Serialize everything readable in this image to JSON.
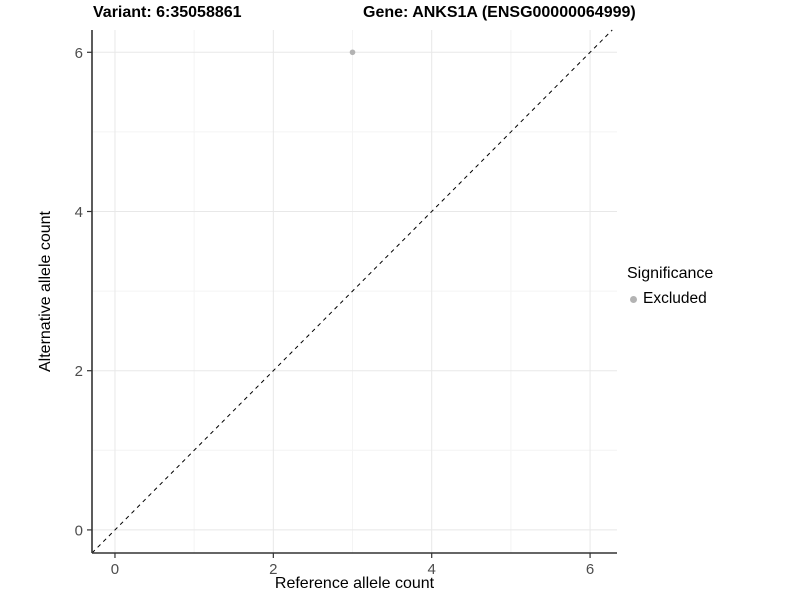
{
  "figure": {
    "title_left": "Variant: 6:35058861",
    "title_right": "Gene: ANKS1A (ENSG00000064999)"
  },
  "chart_data": {
    "type": "scatter",
    "title": "Variant: 6:35058861    Gene: ANKS1A (ENSG00000064999)",
    "xlabel": "Reference allele count",
    "ylabel": "Alternative allele count",
    "xlim": [
      -0.29,
      6.34
    ],
    "ylim": [
      -0.29,
      6.28
    ],
    "x_ticks": [
      0,
      2,
      4,
      6
    ],
    "y_ticks": [
      0,
      2,
      4,
      6
    ],
    "x_minor_ticks": [
      1,
      3,
      5
    ],
    "y_minor_ticks": [
      1,
      3,
      5
    ],
    "grid": true,
    "series": [
      {
        "name": "Excluded",
        "color": "#b3b3b3",
        "points": [
          {
            "x": 3,
            "y": 6
          }
        ]
      }
    ],
    "reference_line": {
      "style": "dashed",
      "equation": "y = x",
      "color": "#000000",
      "from": {
        "x": -0.29,
        "y": -0.29
      },
      "to": {
        "x": 6.28,
        "y": 6.28
      }
    },
    "legend": {
      "title": "Significance",
      "position": "right",
      "entries": [
        {
          "label": "Excluded",
          "color": "#b3b3b3"
        }
      ]
    }
  },
  "colors": {
    "background": "#ffffff",
    "axis_line": "#333333",
    "tick_label": "#4d4d4d",
    "axis_title": "#000000",
    "grid_major": "#e8e8e8",
    "grid_minor": "#f4f4f4",
    "point": "#b3b3b3"
  }
}
